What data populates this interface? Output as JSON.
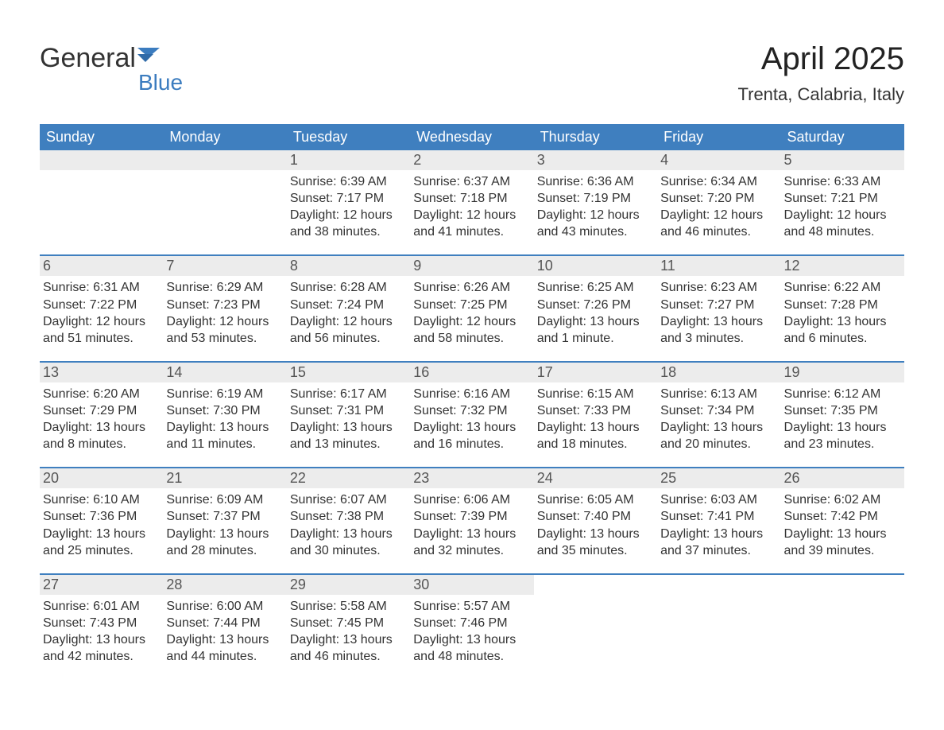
{
  "logo": {
    "word1": "General",
    "word2": "Blue",
    "accent_color": "#3b7cbf"
  },
  "title": "April 2025",
  "subtitle": "Trenta, Calabria, Italy",
  "colors": {
    "header_bg": "#3f7fbf",
    "header_text": "#ffffff",
    "daynum_bg": "#ececec",
    "daynum_text": "#555555",
    "body_text": "#333333",
    "week_divider": "#3f7fbf",
    "page_bg": "#ffffff"
  },
  "fonts": {
    "title_size_pt": 30,
    "subtitle_size_pt": 16,
    "header_size_pt": 14,
    "daynum_size_pt": 14,
    "body_size_pt": 12
  },
  "day_headers": [
    "Sunday",
    "Monday",
    "Tuesday",
    "Wednesday",
    "Thursday",
    "Friday",
    "Saturday"
  ],
  "weeks": [
    [
      {
        "day": "",
        "sunrise": "",
        "sunset": "",
        "daylight": ""
      },
      {
        "day": "",
        "sunrise": "",
        "sunset": "",
        "daylight": ""
      },
      {
        "day": "1",
        "sunrise": "Sunrise: 6:39 AM",
        "sunset": "Sunset: 7:17 PM",
        "daylight": "Daylight: 12 hours and 38 minutes."
      },
      {
        "day": "2",
        "sunrise": "Sunrise: 6:37 AM",
        "sunset": "Sunset: 7:18 PM",
        "daylight": "Daylight: 12 hours and 41 minutes."
      },
      {
        "day": "3",
        "sunrise": "Sunrise: 6:36 AM",
        "sunset": "Sunset: 7:19 PM",
        "daylight": "Daylight: 12 hours and 43 minutes."
      },
      {
        "day": "4",
        "sunrise": "Sunrise: 6:34 AM",
        "sunset": "Sunset: 7:20 PM",
        "daylight": "Daylight: 12 hours and 46 minutes."
      },
      {
        "day": "5",
        "sunrise": "Sunrise: 6:33 AM",
        "sunset": "Sunset: 7:21 PM",
        "daylight": "Daylight: 12 hours and 48 minutes."
      }
    ],
    [
      {
        "day": "6",
        "sunrise": "Sunrise: 6:31 AM",
        "sunset": "Sunset: 7:22 PM",
        "daylight": "Daylight: 12 hours and 51 minutes."
      },
      {
        "day": "7",
        "sunrise": "Sunrise: 6:29 AM",
        "sunset": "Sunset: 7:23 PM",
        "daylight": "Daylight: 12 hours and 53 minutes."
      },
      {
        "day": "8",
        "sunrise": "Sunrise: 6:28 AM",
        "sunset": "Sunset: 7:24 PM",
        "daylight": "Daylight: 12 hours and 56 minutes."
      },
      {
        "day": "9",
        "sunrise": "Sunrise: 6:26 AM",
        "sunset": "Sunset: 7:25 PM",
        "daylight": "Daylight: 12 hours and 58 minutes."
      },
      {
        "day": "10",
        "sunrise": "Sunrise: 6:25 AM",
        "sunset": "Sunset: 7:26 PM",
        "daylight": "Daylight: 13 hours and 1 minute."
      },
      {
        "day": "11",
        "sunrise": "Sunrise: 6:23 AM",
        "sunset": "Sunset: 7:27 PM",
        "daylight": "Daylight: 13 hours and 3 minutes."
      },
      {
        "day": "12",
        "sunrise": "Sunrise: 6:22 AM",
        "sunset": "Sunset: 7:28 PM",
        "daylight": "Daylight: 13 hours and 6 minutes."
      }
    ],
    [
      {
        "day": "13",
        "sunrise": "Sunrise: 6:20 AM",
        "sunset": "Sunset: 7:29 PM",
        "daylight": "Daylight: 13 hours and 8 minutes."
      },
      {
        "day": "14",
        "sunrise": "Sunrise: 6:19 AM",
        "sunset": "Sunset: 7:30 PM",
        "daylight": "Daylight: 13 hours and 11 minutes."
      },
      {
        "day": "15",
        "sunrise": "Sunrise: 6:17 AM",
        "sunset": "Sunset: 7:31 PM",
        "daylight": "Daylight: 13 hours and 13 minutes."
      },
      {
        "day": "16",
        "sunrise": "Sunrise: 6:16 AM",
        "sunset": "Sunset: 7:32 PM",
        "daylight": "Daylight: 13 hours and 16 minutes."
      },
      {
        "day": "17",
        "sunrise": "Sunrise: 6:15 AM",
        "sunset": "Sunset: 7:33 PM",
        "daylight": "Daylight: 13 hours and 18 minutes."
      },
      {
        "day": "18",
        "sunrise": "Sunrise: 6:13 AM",
        "sunset": "Sunset: 7:34 PM",
        "daylight": "Daylight: 13 hours and 20 minutes."
      },
      {
        "day": "19",
        "sunrise": "Sunrise: 6:12 AM",
        "sunset": "Sunset: 7:35 PM",
        "daylight": "Daylight: 13 hours and 23 minutes."
      }
    ],
    [
      {
        "day": "20",
        "sunrise": "Sunrise: 6:10 AM",
        "sunset": "Sunset: 7:36 PM",
        "daylight": "Daylight: 13 hours and 25 minutes."
      },
      {
        "day": "21",
        "sunrise": "Sunrise: 6:09 AM",
        "sunset": "Sunset: 7:37 PM",
        "daylight": "Daylight: 13 hours and 28 minutes."
      },
      {
        "day": "22",
        "sunrise": "Sunrise: 6:07 AM",
        "sunset": "Sunset: 7:38 PM",
        "daylight": "Daylight: 13 hours and 30 minutes."
      },
      {
        "day": "23",
        "sunrise": "Sunrise: 6:06 AM",
        "sunset": "Sunset: 7:39 PM",
        "daylight": "Daylight: 13 hours and 32 minutes."
      },
      {
        "day": "24",
        "sunrise": "Sunrise: 6:05 AM",
        "sunset": "Sunset: 7:40 PM",
        "daylight": "Daylight: 13 hours and 35 minutes."
      },
      {
        "day": "25",
        "sunrise": "Sunrise: 6:03 AM",
        "sunset": "Sunset: 7:41 PM",
        "daylight": "Daylight: 13 hours and 37 minutes."
      },
      {
        "day": "26",
        "sunrise": "Sunrise: 6:02 AM",
        "sunset": "Sunset: 7:42 PM",
        "daylight": "Daylight: 13 hours and 39 minutes."
      }
    ],
    [
      {
        "day": "27",
        "sunrise": "Sunrise: 6:01 AM",
        "sunset": "Sunset: 7:43 PM",
        "daylight": "Daylight: 13 hours and 42 minutes."
      },
      {
        "day": "28",
        "sunrise": "Sunrise: 6:00 AM",
        "sunset": "Sunset: 7:44 PM",
        "daylight": "Daylight: 13 hours and 44 minutes."
      },
      {
        "day": "29",
        "sunrise": "Sunrise: 5:58 AM",
        "sunset": "Sunset: 7:45 PM",
        "daylight": "Daylight: 13 hours and 46 minutes."
      },
      {
        "day": "30",
        "sunrise": "Sunrise: 5:57 AM",
        "sunset": "Sunset: 7:46 PM",
        "daylight": "Daylight: 13 hours and 48 minutes."
      },
      {
        "day": "",
        "sunrise": "",
        "sunset": "",
        "daylight": ""
      },
      {
        "day": "",
        "sunrise": "",
        "sunset": "",
        "daylight": ""
      },
      {
        "day": "",
        "sunrise": "",
        "sunset": "",
        "daylight": ""
      }
    ]
  ]
}
